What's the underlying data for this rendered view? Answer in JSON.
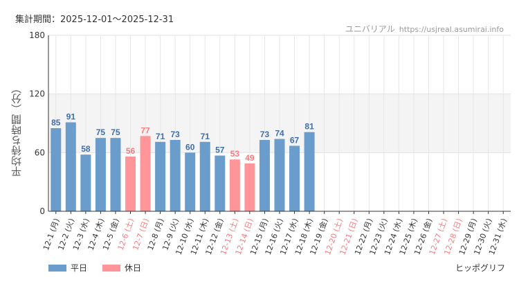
{
  "header": {
    "period_label": "集計期間：2025-12-01〜2025-12-31",
    "brand_name": "ユニバリアル",
    "brand_url": "https://usjreal.asumirai.info"
  },
  "legend": {
    "weekday_label": "平日",
    "holiday_label": "休日"
  },
  "credit": "ヒッポグリフ",
  "colors": {
    "weekday": "#6a9ccc",
    "holiday": "#ff9599",
    "weekday_text": "#3e6fa8",
    "holiday_text": "#f47d80",
    "band": "#f4f4f4"
  },
  "chart_data": {
    "type": "bar",
    "ylabel": "平均待ち時間（分）",
    "ylim": [
      0,
      180
    ],
    "yticks": [
      0,
      60,
      120,
      180
    ],
    "shaded_band": [
      60,
      120
    ],
    "grid": true,
    "legend_position": "bottom-left",
    "categories": [
      "12-1 (月)",
      "12-2 (火)",
      "12-3 (水)",
      "12-4 (木)",
      "12-5 (金)",
      "12-6 (土)",
      "12-7 (日)",
      "12-8 (月)",
      "12-9 (火)",
      "12-10 (水)",
      "12-11 (木)",
      "12-12 (金)",
      "12-13 (土)",
      "12-14 (日)",
      "12-15 (月)",
      "12-16 (火)",
      "12-17 (水)",
      "12-18 (木)",
      "12-19 (金)",
      "12-20 (土)",
      "12-21 (日)",
      "12-22 (月)",
      "12-23 (火)",
      "12-24 (水)",
      "12-25 (木)",
      "12-26 (金)",
      "12-27 (土)",
      "12-28 (日)",
      "12-29 (月)",
      "12-30 (火)",
      "12-31 (水)"
    ],
    "day_type": [
      "平日",
      "平日",
      "平日",
      "平日",
      "平日",
      "休日",
      "休日",
      "平日",
      "平日",
      "平日",
      "平日",
      "平日",
      "休日",
      "休日",
      "平日",
      "平日",
      "平日",
      "平日",
      "平日",
      "休日",
      "休日",
      "平日",
      "平日",
      "平日",
      "平日",
      "平日",
      "休日",
      "休日",
      "平日",
      "平日",
      "平日"
    ],
    "values": [
      85,
      91,
      58,
      75,
      75,
      56,
      77,
      71,
      73,
      60,
      71,
      57,
      53,
      49,
      73,
      74,
      67,
      81,
      null,
      null,
      null,
      null,
      null,
      null,
      null,
      null,
      null,
      null,
      null,
      null,
      null
    ]
  }
}
